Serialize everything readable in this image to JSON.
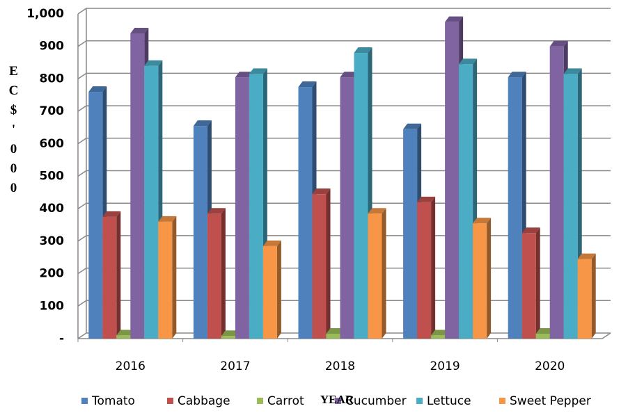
{
  "chart_data": {
    "type": "bar3d",
    "y_label": "EC$'000",
    "x_label": "YEAR",
    "categories": [
      "2016",
      "2017",
      "2018",
      "2019",
      "2020"
    ],
    "series": [
      {
        "name": "Tomato",
        "color": "#4f81bd",
        "values": [
          760,
          655,
          775,
          645,
          805
        ]
      },
      {
        "name": "Cabbage",
        "color": "#c0504d",
        "values": [
          375,
          385,
          445,
          420,
          325
        ]
      },
      {
        "name": "Carrot",
        "color": "#9bbb59",
        "values": [
          10,
          8,
          15,
          10,
          15
        ]
      },
      {
        "name": "Cucumber",
        "color": "#8064a2",
        "values": [
          940,
          805,
          805,
          975,
          900
        ]
      },
      {
        "name": "Lettuce",
        "color": "#4bacc6",
        "values": [
          840,
          815,
          880,
          845,
          815
        ]
      },
      {
        "name": "Sweet Pepper",
        "color": "#f79646",
        "values": [
          360,
          285,
          385,
          355,
          245
        ]
      }
    ],
    "ylim": [
      0,
      1000
    ],
    "yticks": [
      {
        "value": 0,
        "label": "-"
      },
      100,
      200,
      300,
      400,
      500,
      600,
      700,
      800,
      900,
      {
        "value": 1000,
        "label": "1,000"
      }
    ],
    "grid": true,
    "legend": "bottom"
  }
}
